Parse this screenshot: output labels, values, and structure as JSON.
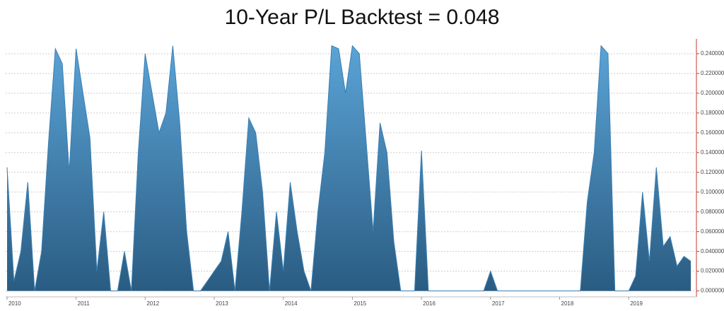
{
  "chart_data": {
    "type": "area",
    "title": "10-Year P/L Backtest = 0.048",
    "x": [
      2010,
      2010.1,
      2010.2,
      2010.3,
      2010.4,
      2010.5,
      2010.6,
      2010.7,
      2010.8,
      2010.9,
      2011,
      2011.1,
      2011.2,
      2011.3,
      2011.4,
      2011.5,
      2011.6,
      2011.7,
      2011.8,
      2011.9,
      2012,
      2012.1,
      2012.2,
      2012.3,
      2012.4,
      2012.5,
      2012.6,
      2012.7,
      2012.8,
      2012.9,
      2013,
      2013.1,
      2013.2,
      2013.3,
      2013.4,
      2013.5,
      2013.6,
      2013.7,
      2013.8,
      2013.9,
      2014,
      2014.1,
      2014.2,
      2014.3,
      2014.4,
      2014.5,
      2014.6,
      2014.7,
      2014.8,
      2014.9,
      2015,
      2015.1,
      2015.2,
      2015.3,
      2015.4,
      2015.5,
      2015.6,
      2015.7,
      2015.8,
      2015.9,
      2016,
      2016.1,
      2016.2,
      2016.3,
      2016.4,
      2016.5,
      2016.6,
      2016.7,
      2016.8,
      2016.9,
      2017,
      2017.1,
      2017.2,
      2017.3,
      2017.4,
      2017.5,
      2017.6,
      2017.7,
      2017.8,
      2017.9,
      2018,
      2018.1,
      2018.2,
      2018.3,
      2018.4,
      2018.5,
      2018.6,
      2018.7,
      2018.8,
      2018.9,
      2019,
      2019.1,
      2019.2,
      2019.3,
      2019.4,
      2019.5,
      2019.6,
      2019.7,
      2019.8,
      2019.9
    ],
    "values": [
      0.125,
      0.01,
      0.04,
      0.11,
      0,
      0.04,
      0.15,
      0.245,
      0.23,
      0.12,
      0.245,
      0.2,
      0.155,
      0.02,
      0.08,
      0,
      0,
      0.04,
      0,
      0.14,
      0.24,
      0.2,
      0.16,
      0.18,
      0.248,
      0.17,
      0.06,
      0,
      0,
      0.01,
      0.02,
      0.03,
      0.06,
      0,
      0.08,
      0.175,
      0.16,
      0.1,
      0,
      0.08,
      0.02,
      0.11,
      0.06,
      0.02,
      0,
      0.08,
      0.14,
      0.248,
      0.245,
      0.2,
      0.248,
      0.24,
      0.15,
      0.06,
      0.17,
      0.14,
      0.05,
      0,
      0,
      0,
      0.142,
      0,
      0,
      0,
      0,
      0,
      0,
      0,
      0,
      0,
      0.02,
      0,
      0,
      0,
      0,
      0,
      0,
      0,
      0,
      0,
      0,
      0,
      0,
      0,
      0.09,
      0.14,
      0.248,
      0.24,
      0,
      0,
      0,
      0.015,
      0.1,
      0.03,
      0.125,
      0.045,
      0.055,
      0.025,
      0.035,
      0.03
    ],
    "color": "#3a7fb3",
    "xlim": [
      2009.98,
      2019.96
    ],
    "xticks": [
      2010,
      2011,
      2012,
      2013,
      2014,
      2015,
      2016,
      2017,
      2018,
      2019
    ],
    "ylim": [
      -0.006,
      0.255
    ],
    "yticks": [
      {
        "value": 0,
        "label": "0.000000"
      },
      {
        "value": 0.02,
        "label": "0.020000"
      },
      {
        "value": 0.04,
        "label": "0.040000"
      },
      {
        "value": 0.06,
        "label": "0.060000"
      },
      {
        "value": 0.08,
        "label": "0.080000"
      },
      {
        "value": 0.1,
        "label": "0.100000"
      },
      {
        "value": 0.12,
        "label": "0.120000"
      },
      {
        "value": 0.14,
        "label": "0.140000"
      },
      {
        "value": 0.16,
        "label": "0.160000"
      },
      {
        "value": 0.18,
        "label": "0.180000"
      },
      {
        "value": 0.2,
        "label": "0.200000"
      },
      {
        "value": 0.22,
        "label": "0.220000"
      },
      {
        "value": 0.24,
        "label": "0.240000"
      }
    ],
    "grid": true
  }
}
